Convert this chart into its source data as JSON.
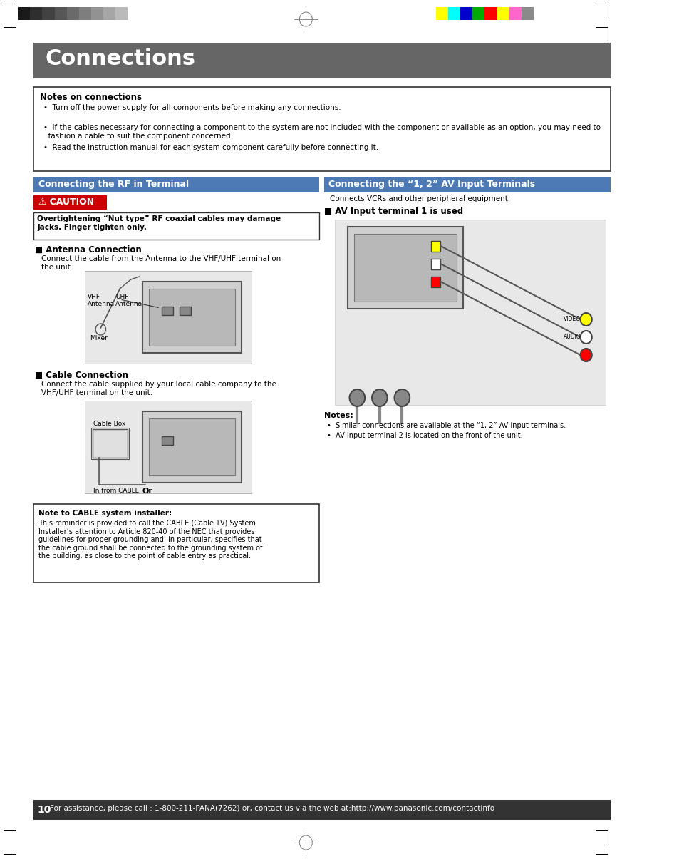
{
  "page_bg": "#ffffff",
  "top_color_bars_left": [
    "#1a1a1a",
    "#333333",
    "#4d4d4d",
    "#666666",
    "#808080",
    "#999999",
    "#b3b3b3",
    "#cccccc",
    "#e6e6e6",
    "#ffffff"
  ],
  "top_color_bars_right": [
    "#ffff00",
    "#00ffff",
    "#0000cc",
    "#00cc00",
    "#ff0000",
    "#ffff00",
    "#ff66cc",
    "#999999"
  ],
  "header_bg": "#666666",
  "header_text": "Connections",
  "header_text_color": "#ffffff",
  "notes_title": "Notes on connections",
  "notes_bullets": [
    "Turn off the power supply for all components before making any connections.",
    "If the cables necessary for connecting a component to the system are not included with the component or available as an option, you may need to\n    fashion a cable to suit the component concerned.",
    "Read the instruction manual for each system component carefully before connecting it."
  ],
  "left_section_header": "Connecting the RF in Terminal",
  "left_section_header_bg": "#4d7ab5",
  "left_section_header_text": "#ffffff",
  "caution_bg": "#cc0000",
  "caution_text": "⚠ CAUTION",
  "caution_box_text": "Overtightening “Nut type” RF coaxial cables may damage\njacks. Finger tighten only.",
  "antenna_header": "■ Antenna Connection",
  "antenna_body": "Connect the cable from the Antenna to the VHF/UHF terminal on\nthe unit.",
  "antenna_labels": [
    "VHF\nAntenna",
    "UHF\nAntenna",
    "Mixer"
  ],
  "cable_header": "■ Cable Connection",
  "cable_body": "Connect the cable supplied by your local cable company to the\nVHF/UHF terminal on the unit.",
  "cable_labels": [
    "Cable Box",
    "In from CABLE",
    "Or"
  ],
  "right_section_header": "Connecting the “1, 2” AV Input Terminals",
  "right_section_header_bg": "#4d7ab5",
  "right_section_header_text": "#ffffff",
  "av_intro": "Connects VCRs and other peripheral equipment",
  "av_header": "■ AV Input terminal 1 is used",
  "av_notes_title": "Notes:",
  "av_notes": [
    "Similar connections are available at the “1, 2” AV input terminals.",
    "AV Input terminal 2 is located on the front of the unit."
  ],
  "cable_note_title": "Note to CABLE system installer:",
  "cable_note_body": "This reminder is provided to call the CABLE (Cable TV) System\nInstaller’s attention to Article 820-40 of the NEC that provides\nguidelines for proper grounding and, in particular, specifies that\nthe cable ground shall be connected to the grounding system of\nthe building, as close to the point of cable entry as practical.",
  "footer_bg": "#333333",
  "footer_text": "For assistance, please call : 1-800-211-PANA(7262) or, contact us via the web at:http://www.panasonic.com/contactinfo",
  "footer_page": "10",
  "footer_text_color": "#ffffff"
}
